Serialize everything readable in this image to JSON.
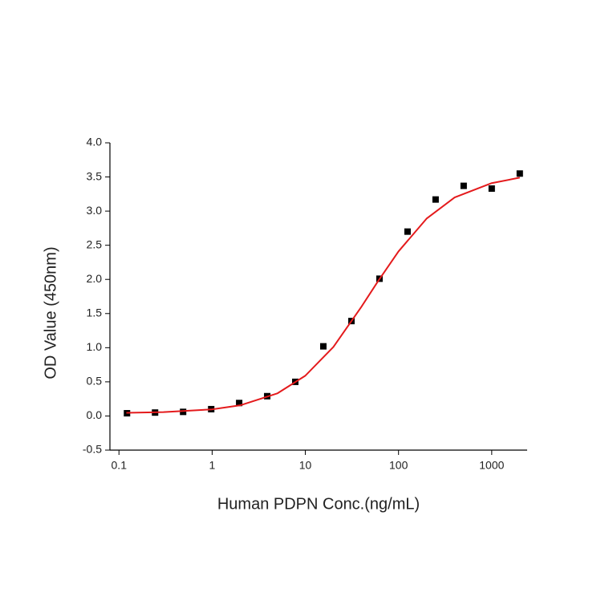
{
  "chart_data": {
    "type": "scatter",
    "x_label": "Human PDPN Conc.(ng/mL)",
    "y_label": "OD Value (450nm)",
    "x_log": true,
    "xlim": [
      0.08,
      2400
    ],
    "xticks": [
      0.1,
      1,
      10,
      100,
      1000
    ],
    "ylim": [
      -0.5,
      4.0
    ],
    "yticks": [
      -0.5,
      {
        "value": 0,
        "label": "0.0"
      },
      0.5,
      {
        "value": 1,
        "label": "1.0"
      },
      1.5,
      {
        "value": 2,
        "label": "2.0"
      },
      2.5,
      {
        "value": 3,
        "label": "3.0"
      },
      3.5,
      {
        "value": 4,
        "label": "4.0"
      }
    ],
    "series": [
      {
        "color": "#000000",
        "marker": "square",
        "x": [
          0.122,
          0.244,
          0.488,
          0.977,
          1.95,
          3.9,
          7.8,
          15.6,
          31.25,
          62.5,
          125,
          250,
          500,
          1000,
          2000
        ],
        "values": [
          0.04,
          0.05,
          0.06,
          0.1,
          0.19,
          0.29,
          0.5,
          1.02,
          1.39,
          2.01,
          2.7,
          3.17,
          3.37,
          3.33,
          3.55
        ]
      },
      {
        "color": "#e41a1c",
        "line": true,
        "x": [
          0.12,
          0.3,
          1,
          2,
          5,
          10,
          20,
          40,
          60,
          100,
          200,
          400,
          1000,
          2000
        ],
        "values": [
          0.046,
          0.056,
          0.097,
          0.156,
          0.33,
          0.59,
          1.01,
          1.6,
          1.97,
          2.41,
          2.89,
          3.2,
          3.41,
          3.49
        ]
      }
    ]
  }
}
